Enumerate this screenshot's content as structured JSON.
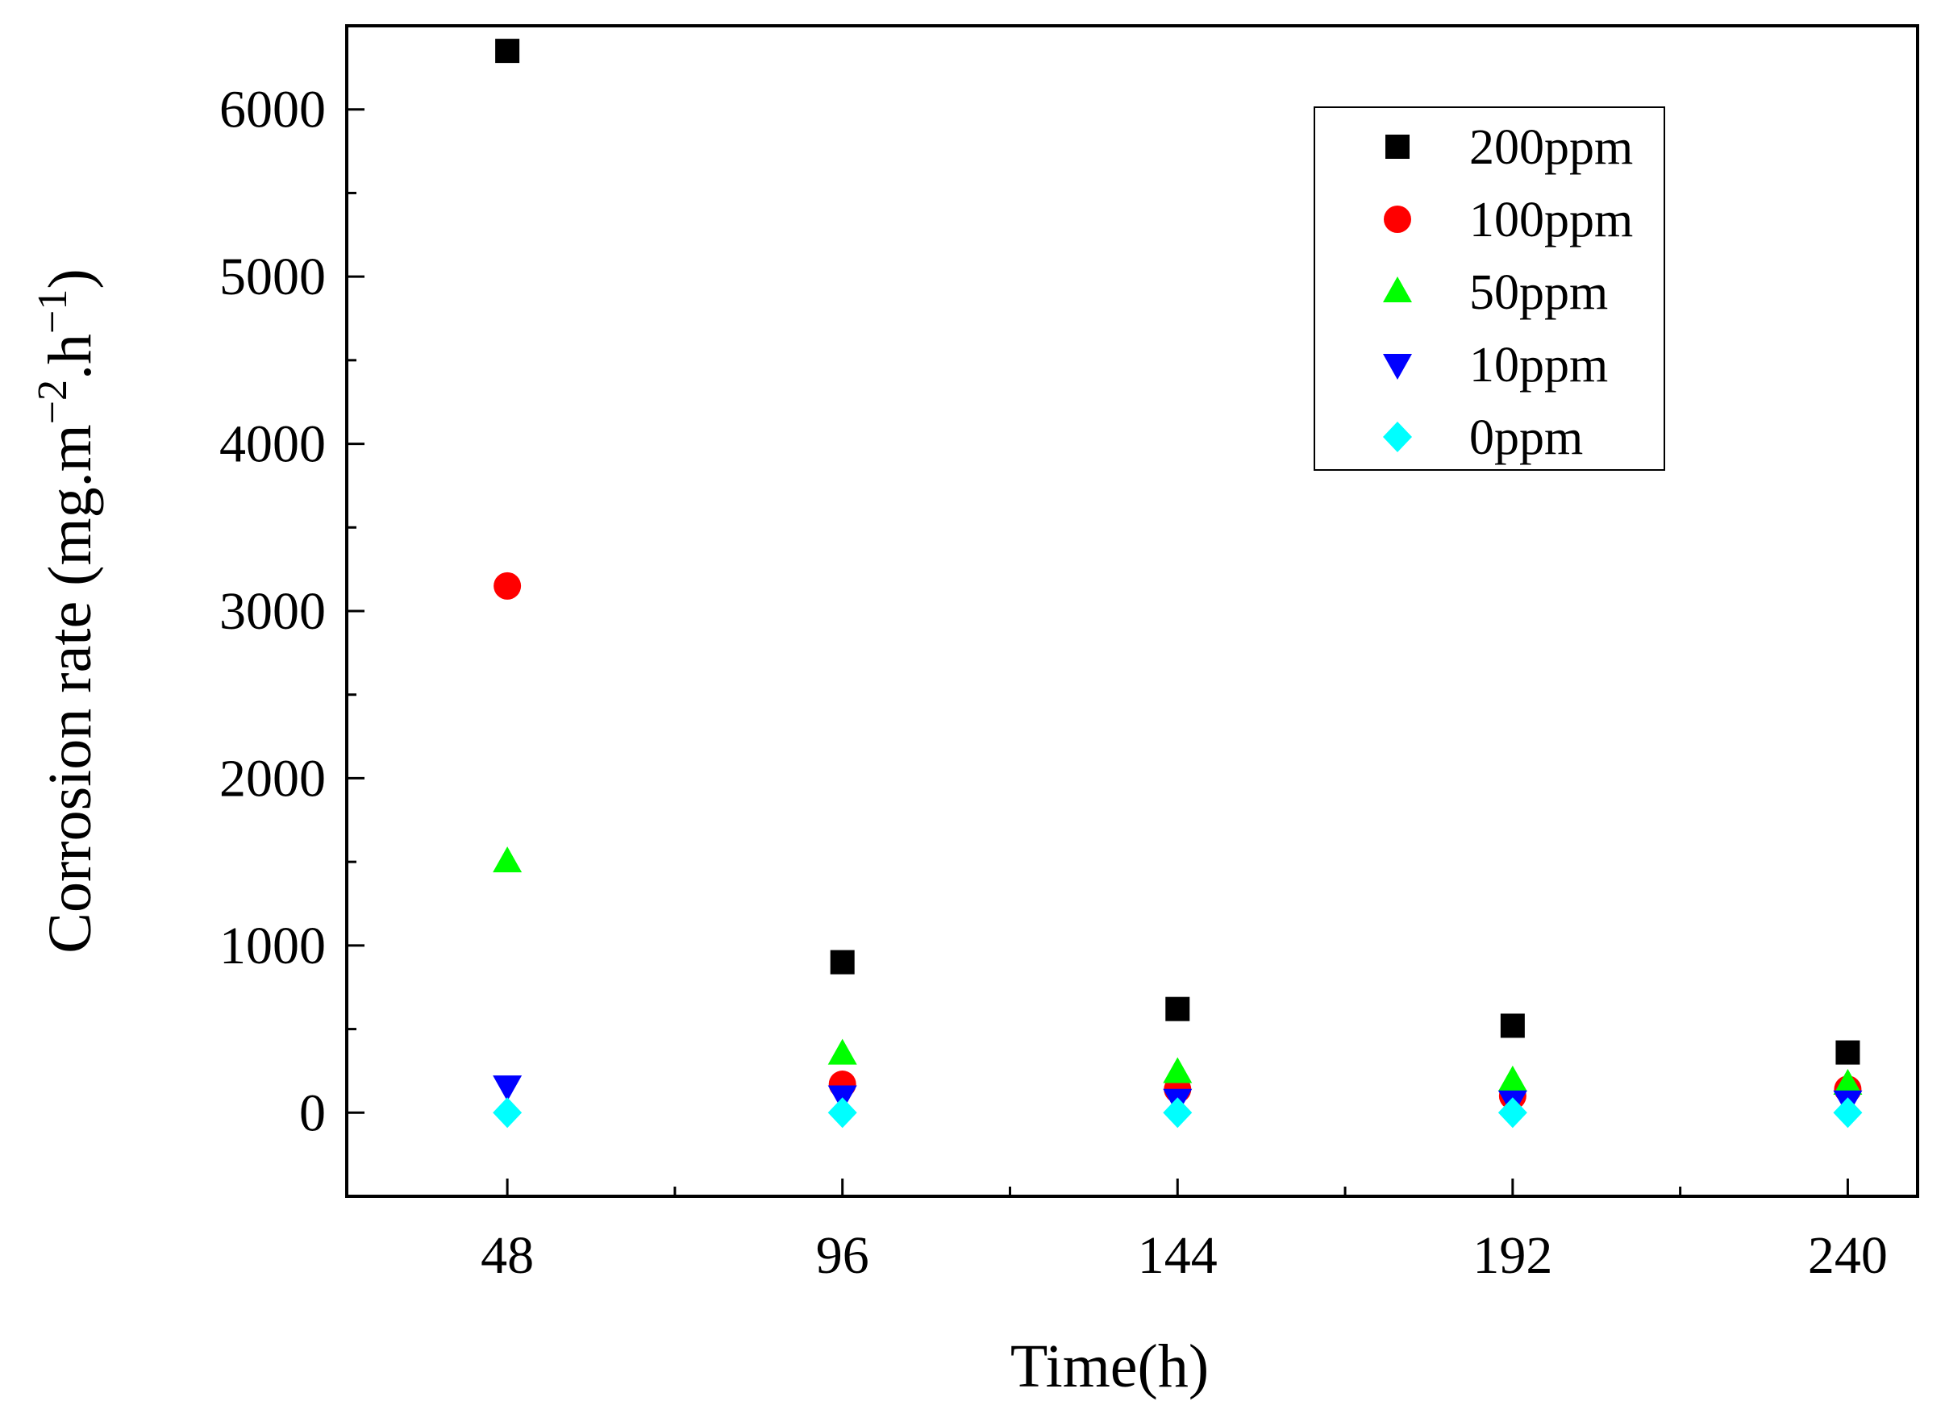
{
  "chart_data": {
    "type": "scatter",
    "title": "",
    "xlabel": "Time(h)",
    "ylabel": {
      "base": "Corrosion rate (mg.m",
      "exp1": "−2",
      "mid": ".h",
      "exp2": "−1",
      "end": ")"
    },
    "categories": [
      "48",
      "96",
      "144",
      "192",
      "240"
    ],
    "x": [
      48,
      96,
      144,
      192,
      240
    ],
    "xlim": [
      25,
      250
    ],
    "ylim": [
      -500,
      6500
    ],
    "yticks": [
      0,
      1000,
      2000,
      3000,
      4000,
      5000,
      6000
    ],
    "grid": false,
    "legend_position": "top-right",
    "series": [
      {
        "name": "200ppm",
        "marker": "square",
        "color": "#000000",
        "values": [
          6350,
          900,
          620,
          520,
          360
        ]
      },
      {
        "name": "100ppm",
        "marker": "circle",
        "color": "#ff0000",
        "values": [
          3150,
          170,
          140,
          100,
          140
        ]
      },
      {
        "name": "50ppm",
        "marker": "triangle-up",
        "color": "#00ff00",
        "values": [
          1500,
          350,
          240,
          190,
          170
        ]
      },
      {
        "name": "10ppm",
        "marker": "triangle-down",
        "color": "#0000ff",
        "values": [
          160,
          100,
          80,
          70,
          70
        ]
      },
      {
        "name": "0ppm",
        "marker": "diamond",
        "color": "#00ffff",
        "values": [
          0,
          0,
          0,
          0,
          0
        ]
      }
    ]
  }
}
